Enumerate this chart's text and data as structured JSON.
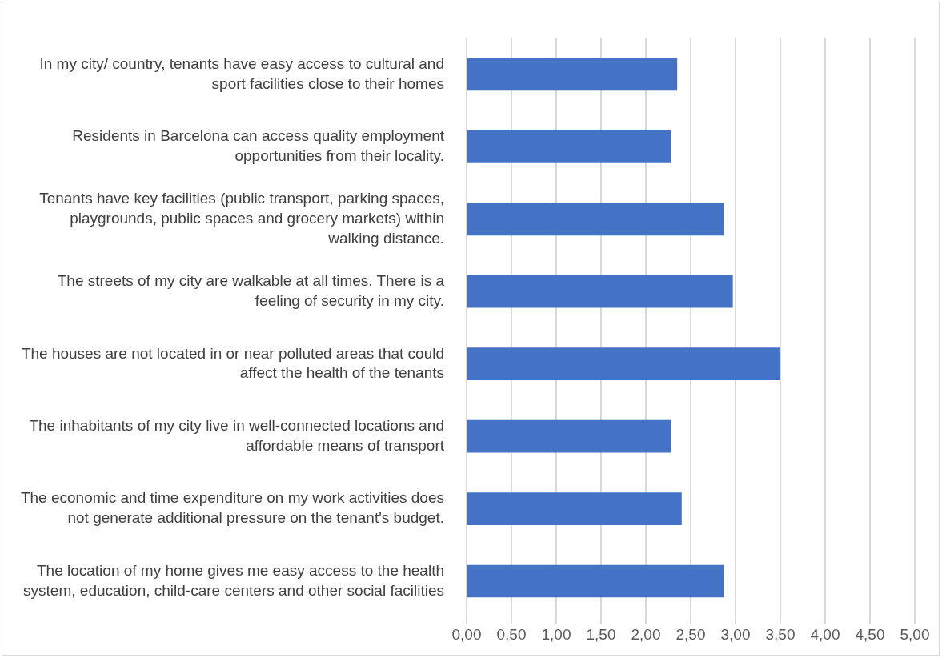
{
  "chart_data": {
    "type": "bar",
    "orientation": "horizontal",
    "categories": [
      "In my city/ country, tenants have easy access to cultural and sport facilities close to their homes",
      "Residents in Barcelona can access quality employment opportunities from their locality.",
      "Tenants have key facilities (public transport, parking spaces, playgrounds, public spaces and grocery markets) within walking distance.",
      "The streets of my city are walkable at all times. There is a feeling of security in my city.",
      "The houses are not located in or near polluted areas that could affect the health of the tenants",
      "The inhabitants of my city live in well-connected locations and affordable means of transport",
      "The economic and time expenditure on my work activities does not generate additional pressure on the tenant's budget.",
      "The location of my home gives me easy access to the health system, education, child-care centers and other social facilities"
    ],
    "values": [
      2.35,
      2.28,
      2.87,
      2.97,
      3.5,
      2.28,
      2.4,
      2.87
    ],
    "color": "#4472c4",
    "xlim": [
      0,
      5
    ],
    "xticks": [
      {
        "value": 0,
        "label": "0,00"
      },
      {
        "value": 0.5,
        "label": "0,50"
      },
      {
        "value": 1,
        "label": "1,00"
      },
      {
        "value": 1.5,
        "label": "1,50"
      },
      {
        "value": 2,
        "label": "2,00"
      },
      {
        "value": 2.5,
        "label": "2,50"
      },
      {
        "value": 3,
        "label": "3,00"
      },
      {
        "value": 3.5,
        "label": "3,50"
      },
      {
        "value": 4,
        "label": "4,00"
      },
      {
        "value": 4.5,
        "label": "4,50"
      },
      {
        "value": 5,
        "label": "5,00"
      }
    ],
    "grid": "x"
  }
}
